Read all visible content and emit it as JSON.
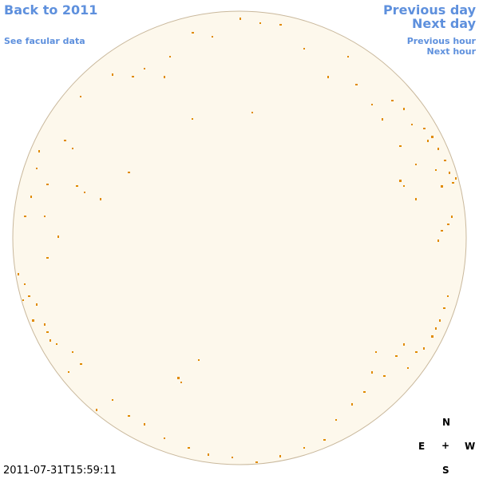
{
  "nav": {
    "back": "Back to 2011",
    "facular_data": "See facular data",
    "previous_day": "Previous day",
    "next_day": "Next day",
    "previous_hour": "Previous hour",
    "next_hour": "Next hour"
  },
  "timestamp": "2011-07-31T15:59:11",
  "compass": {
    "north": "N",
    "east": "E",
    "center": "+",
    "west": "W",
    "south": "S"
  }
}
